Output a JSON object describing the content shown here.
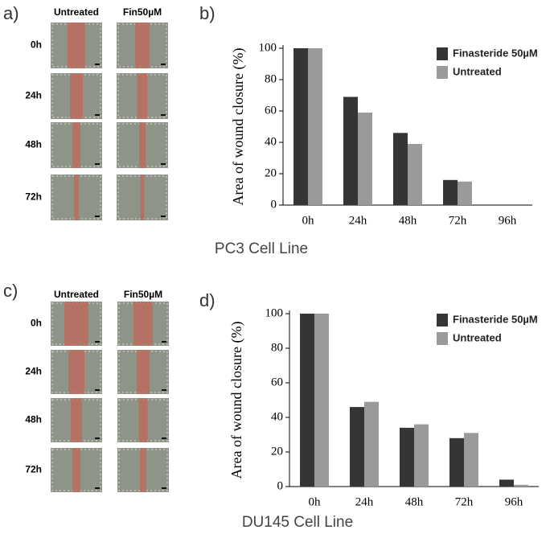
{
  "panels": [
    {
      "label": "a)",
      "columns": [
        "Untreated",
        "Fin50µM"
      ],
      "rows": [
        "0h",
        "24h",
        "48h",
        "72h"
      ],
      "caption": "PC3 Cell Line"
    },
    {
      "label": "c)",
      "columns": [
        "Untreated",
        "Fin50µM"
      ],
      "rows": [
        "0h",
        "24h",
        "48h",
        "72h"
      ],
      "caption": "DU145 Cell Line"
    }
  ],
  "chart_data": [
    {
      "type": "bar",
      "panel_label": "b)",
      "y_label": "Area of wound closure (%)",
      "categories": [
        "0h",
        "24h",
        "48h",
        "72h",
        "96h"
      ],
      "series": [
        {
          "name": "Finasteride 50µM",
          "color": "#353535",
          "values": [
            100,
            69,
            46,
            16,
            0
          ]
        },
        {
          "name": "Untreated",
          "color": "#9a9a9a",
          "values": [
            100,
            59,
            39,
            15,
            0
          ]
        }
      ],
      "ylim": [
        0,
        100
      ],
      "yticks": [
        0,
        20,
        40,
        60,
        80,
        100
      ],
      "legend": "upper right"
    },
    {
      "type": "bar",
      "panel_label": "d)",
      "y_label": "Area of wound closure (%)",
      "categories": [
        "0h",
        "24h",
        "48h",
        "72h",
        "96h"
      ],
      "series": [
        {
          "name": "Finasteride 50µM",
          "color": "#353535",
          "values": [
            100,
            46,
            34,
            28,
            4
          ]
        },
        {
          "name": "Untreated",
          "color": "#9a9a9a",
          "values": [
            100,
            49,
            36,
            31,
            1
          ]
        }
      ],
      "ylim": [
        0,
        100
      ],
      "yticks": [
        0,
        20,
        40,
        60,
        80,
        100
      ],
      "legend": "upper right"
    }
  ]
}
